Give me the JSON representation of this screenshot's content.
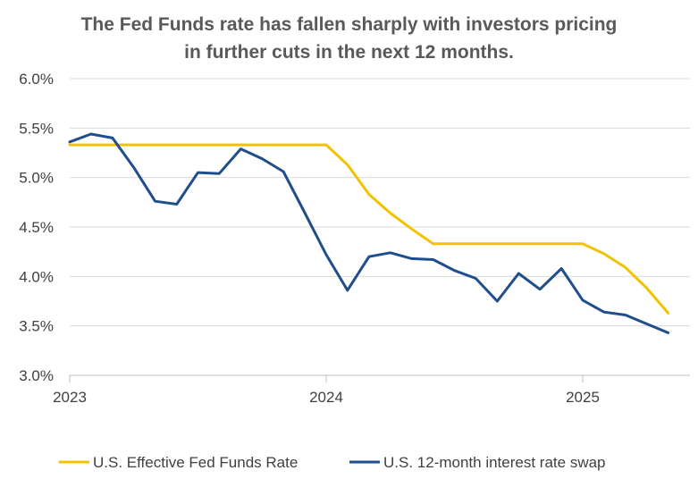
{
  "chart_data": {
    "type": "line",
    "title_lines": [
      "The Fed Funds rate has fallen sharply with investors pricing",
      "in further cuts in the next 12 months."
    ],
    "xlabel": "",
    "ylabel": "",
    "ylim": [
      3.0,
      6.0
    ],
    "y_ticks": [
      3.0,
      3.5,
      4.0,
      4.5,
      5.0,
      5.5,
      6.0
    ],
    "y_tick_labels": [
      "3.0%",
      "3.5%",
      "4.0%",
      "4.5%",
      "5.0%",
      "5.5%",
      "6.0%"
    ],
    "x_range": [
      2023.0,
      2025.417
    ],
    "x_ticks": [
      2023,
      2024,
      2025
    ],
    "x_tick_labels": [
      "2023",
      "2024",
      "2025"
    ],
    "grid": true,
    "legend_position": "bottom",
    "series": [
      {
        "name": "U.S. Effective Fed Funds Rate",
        "color": "#F2C100",
        "x": [
          2023.0,
          2023.083,
          2023.167,
          2023.25,
          2023.333,
          2023.417,
          2023.5,
          2023.583,
          2023.667,
          2023.75,
          2023.833,
          2023.917,
          2024.0,
          2024.083,
          2024.167,
          2024.25,
          2024.333,
          2024.417,
          2024.5,
          2024.583,
          2024.667,
          2024.75,
          2024.833,
          2024.917,
          2025.0,
          2025.083,
          2025.167,
          2025.25,
          2025.333
        ],
        "values": [
          5.33,
          5.33,
          5.33,
          5.33,
          5.33,
          5.33,
          5.33,
          5.33,
          5.33,
          5.33,
          5.33,
          5.33,
          5.33,
          5.13,
          4.83,
          4.64,
          4.48,
          4.33,
          4.33,
          4.33,
          4.33,
          4.33,
          4.33,
          4.33,
          4.33,
          4.23,
          4.09,
          3.88,
          3.63
        ]
      },
      {
        "name": "U.S. 12-month interest rate swap",
        "color": "#1F4E8C",
        "x": [
          2023.0,
          2023.083,
          2023.167,
          2023.25,
          2023.333,
          2023.417,
          2023.5,
          2023.583,
          2023.667,
          2023.75,
          2023.833,
          2023.917,
          2024.0,
          2024.083,
          2024.167,
          2024.25,
          2024.333,
          2024.417,
          2024.5,
          2024.583,
          2024.667,
          2024.75,
          2024.833,
          2024.917,
          2025.0,
          2025.083,
          2025.167,
          2025.25,
          2025.333
        ],
        "values": [
          5.36,
          5.44,
          5.4,
          5.1,
          4.76,
          4.73,
          5.05,
          5.04,
          5.29,
          5.19,
          5.06,
          4.64,
          4.22,
          3.86,
          4.2,
          4.24,
          4.18,
          4.17,
          4.06,
          3.98,
          3.75,
          4.03,
          3.87,
          4.08,
          3.76,
          3.64,
          3.61,
          3.52,
          3.43
        ]
      }
    ]
  }
}
